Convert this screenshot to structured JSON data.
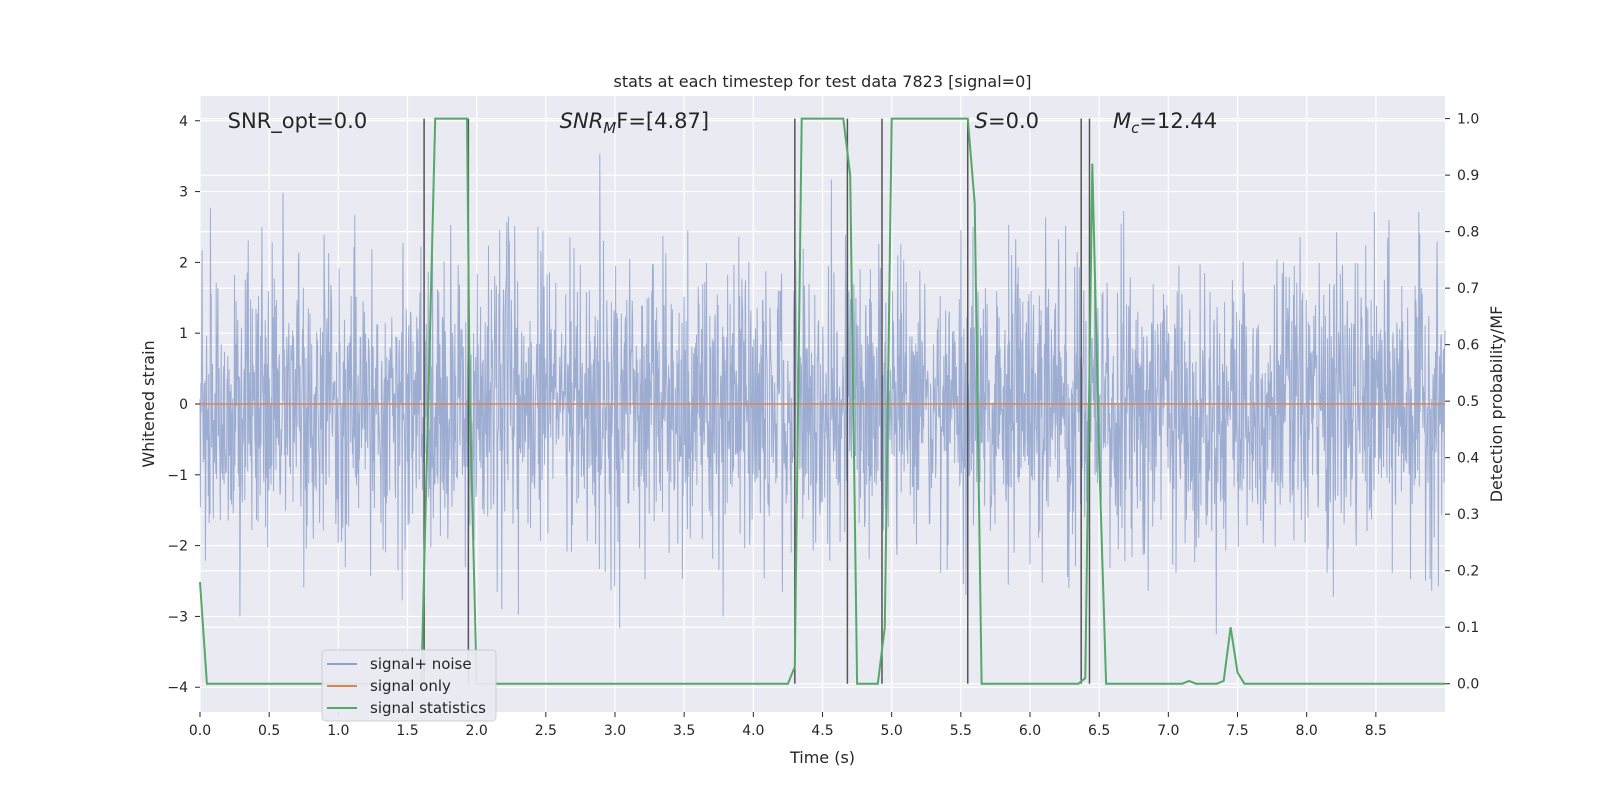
{
  "chart_data": {
    "type": "line",
    "title": "stats at each timestep for test data 7823 [signal=0]",
    "xlabel": "Time (s)",
    "ylabel": "Whitened strain",
    "ylabel_right": "Detection probability/MF",
    "xlim": [
      0,
      9
    ],
    "ylim_left": [
      -4.35,
      4.35
    ],
    "ylim_right": [
      -0.05,
      1.04
    ],
    "x_ticks": [
      "0.0",
      "0.5",
      "1.0",
      "1.5",
      "2.0",
      "2.5",
      "3.0",
      "3.5",
      "4.0",
      "4.5",
      "5.0",
      "5.5",
      "6.0",
      "6.5",
      "7.0",
      "7.5",
      "8.0",
      "8.5"
    ],
    "x_tick_values": [
      0,
      0.5,
      1,
      1.5,
      2,
      2.5,
      3,
      3.5,
      4,
      4.5,
      5,
      5.5,
      6,
      6.5,
      7,
      7.5,
      8,
      8.5
    ],
    "y_ticks_left": [
      "−4",
      "−3",
      "−2",
      "−1",
      "0",
      "1",
      "2",
      "3",
      "4"
    ],
    "y_tick_values_left": [
      -4,
      -3,
      -2,
      -1,
      0,
      1,
      2,
      3,
      4
    ],
    "y_ticks_right": [
      "0.0",
      "0.1",
      "0.2",
      "0.3",
      "0.4",
      "0.5",
      "0.6",
      "0.7",
      "0.8",
      "0.9",
      "1.0"
    ],
    "y_tick_values_right": [
      0,
      0.1,
      0.2,
      0.3,
      0.4,
      0.5,
      0.6,
      0.7,
      0.8,
      0.9,
      1.0
    ],
    "annotations": [
      {
        "text": "SNR_opt=0.0",
        "x": 0.2,
        "y": 4.0
      },
      {
        "text_parts": [
          "SNR",
          "M",
          "F=[4.87]"
        ],
        "x": 2.6,
        "y": 4.0
      },
      {
        "text_parts": [
          "S",
          "=0.0"
        ],
        "x": 5.6,
        "y": 4.0
      },
      {
        "text_parts": [
          "M",
          "c",
          "=12.44"
        ],
        "x": 6.6,
        "y": 4.0
      }
    ],
    "legend_position": "lower-left",
    "grid": true,
    "series": [
      {
        "name": "signal+ noise",
        "color": "#8fa2cc",
        "axis": "left",
        "description": "noise, roughly in range -3 to 3.8",
        "x_range": [
          0,
          9
        ],
        "amplitude_sigma": 1.0
      },
      {
        "name": "signal only",
        "color": "#dd8452",
        "axis": "left",
        "x": [
          0,
          9
        ],
        "y": [
          0,
          0
        ]
      },
      {
        "name": "signal statistics",
        "color": "#55a868",
        "axis": "right",
        "x": [
          0.0,
          0.05,
          0.1,
          1.6,
          1.65,
          1.7,
          1.93,
          1.95,
          2.0,
          2.05,
          2.1,
          4.25,
          4.3,
          4.35,
          4.4,
          4.65,
          4.7,
          4.75,
          4.85,
          4.9,
          4.95,
          5.0,
          5.55,
          5.6,
          5.65,
          5.7,
          6.35,
          6.4,
          6.45,
          6.5,
          6.55,
          6.6,
          7.1,
          7.15,
          7.2,
          7.35,
          7.4,
          7.45,
          7.5,
          7.55,
          7.6,
          9.0
        ],
        "y": [
          0.18,
          0.0,
          0.0,
          0.0,
          0.5,
          1.0,
          1.0,
          0.5,
          0.0,
          0.0,
          0.0,
          0.0,
          0.03,
          1.0,
          1.0,
          1.0,
          0.9,
          0.0,
          0.0,
          0.0,
          0.1,
          1.0,
          1.0,
          0.85,
          0.0,
          0.0,
          0.0,
          0.01,
          0.92,
          0.4,
          0.0,
          0.0,
          0.0,
          0.005,
          0.0,
          0.0,
          0.005,
          0.1,
          0.02,
          0.0,
          0.0,
          0.0
        ]
      }
    ],
    "vertical_lines": {
      "color": "#555555",
      "x": [
        1.62,
        1.94,
        4.3,
        4.68,
        4.93,
        5.55,
        6.37,
        6.43
      ]
    }
  }
}
